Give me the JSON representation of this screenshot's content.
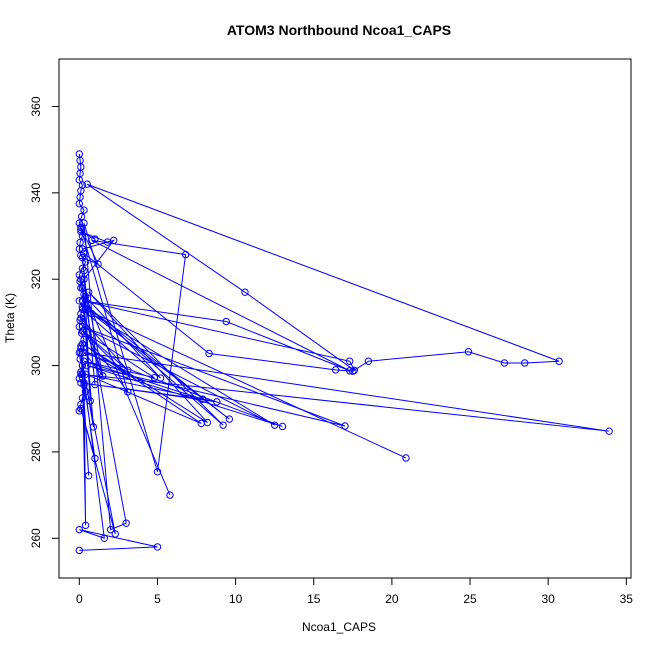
{
  "chart_data": {
    "type": "line",
    "title": "ATOM3 Northbound Ncoa1_CAPS",
    "xlabel": "Ncoa1_CAPS",
    "ylabel": "Theta (K)",
    "xlim": [
      -1.3,
      35.3
    ],
    "ylim": [
      250.8,
      371.0
    ],
    "xticks": [
      0,
      5,
      10,
      15,
      20,
      25,
      30,
      35
    ],
    "yticks": [
      260,
      280,
      300,
      320,
      340,
      360
    ],
    "grid": false,
    "legend": "none",
    "markers": "open-circle",
    "color": "#0000ff",
    "series": [
      {
        "x": [
          0.0,
          0.05,
          0.1,
          0.05,
          0.0,
          0.2,
          0.1,
          0.05,
          0.0,
          0.3,
          0.15,
          0.0,
          0.1,
          0.2,
          0.05,
          0.0,
          0.1,
          0.4,
          0.2,
          0.0,
          0.05,
          0.1,
          0.3,
          0.0,
          0.2,
          0.1,
          0.05,
          0.0,
          0.15,
          0.3,
          0.1,
          0.0,
          0.05,
          0.2,
          0.1,
          0.0,
          0.3,
          0.4,
          0.2,
          0.1,
          0.0
        ],
        "y": [
          349.0,
          347.5,
          346.0,
          344.5,
          343.0,
          341.8,
          340.5,
          339.0,
          337.5,
          336.0,
          334.5,
          333.0,
          331.5,
          330.0,
          328.5,
          327.0,
          325.5,
          324.0,
          322.5,
          321.0,
          319.5,
          318.0,
          316.5,
          315.0,
          313.5,
          312.0,
          310.5,
          309.0,
          307.5,
          306.0,
          304.5,
          303.0,
          301.5,
          300.0,
          298.5,
          297.0,
          295.5,
          294.0,
          292.5,
          291.0,
          289.5
        ]
      },
      {
        "x": [
          0.3,
          8.3,
          16.4,
          17.5,
          18.5,
          24.9,
          27.2,
          28.5,
          30.7,
          0.5,
          10.6,
          17.6,
          17.3,
          0.2,
          9.4,
          17.3,
          0.8,
          6.8,
          5.0,
          0.3,
          2.0,
          3.0,
          0.1,
          0.4,
          20.9
        ],
        "y": [
          326.0,
          302.8,
          299.0,
          298.7,
          301.0,
          303.2,
          300.6,
          300.6,
          301.0,
          342.0,
          317.0,
          298.9,
          301.0,
          315.0,
          310.2,
          298.8,
          329.0,
          325.7,
          275.4,
          333.0,
          262.0,
          263.5,
          320.0,
          313.0,
          278.6
        ]
      },
      {
        "x": [
          0.1,
          33.9,
          0.3,
          13.0,
          0.5,
          17.0,
          0.2,
          12.5,
          0.8,
          9.6,
          0.4,
          9.2,
          0.6,
          8.2,
          0.2,
          7.8,
          0.4,
          8.8,
          0.1,
          7.9,
          0.3,
          4.8,
          0.2,
          3.1,
          0.1,
          1.5,
          0.2,
          5.2,
          0.4,
          5.8
        ],
        "y": [
          298.0,
          284.8,
          303.0,
          285.9,
          300.0,
          286.0,
          309.0,
          286.2,
          312.0,
          287.6,
          314.0,
          286.2,
          317.0,
          286.8,
          305.0,
          286.6,
          298.0,
          291.6,
          296.0,
          292.2,
          301.0,
          297.2,
          308.0,
          298.9,
          311.0,
          297.6,
          313.0,
          297.1,
          316.0,
          270.0
        ]
      },
      {
        "x": [
          0.0,
          5.0,
          0.0,
          1.6,
          0.2,
          2.3,
          0.1,
          1.0,
          0.3,
          0.4,
          0.2,
          0.6,
          0.1,
          0.9,
          0.2,
          0.7,
          0.3,
          1.0,
          0.2,
          1.2,
          0.1,
          3.1,
          0.2,
          3.0,
          0.1,
          1.5,
          0.3,
          2.2,
          0.2,
          1.8,
          0.1,
          1.0
        ],
        "y": [
          257.2,
          258.0,
          262.0,
          260.0,
          300.0,
          261.0,
          290.0,
          278.5,
          296.0,
          263.0,
          298.0,
          274.5,
          303.0,
          285.8,
          318.0,
          291.8,
          322.0,
          295.6,
          325.0,
          323.5,
          332.0,
          293.9,
          308.0,
          298.0,
          304.0,
          297.6,
          320.0,
          329.0,
          327.0,
          328.6,
          331.0,
          329.3
        ]
      }
    ]
  }
}
